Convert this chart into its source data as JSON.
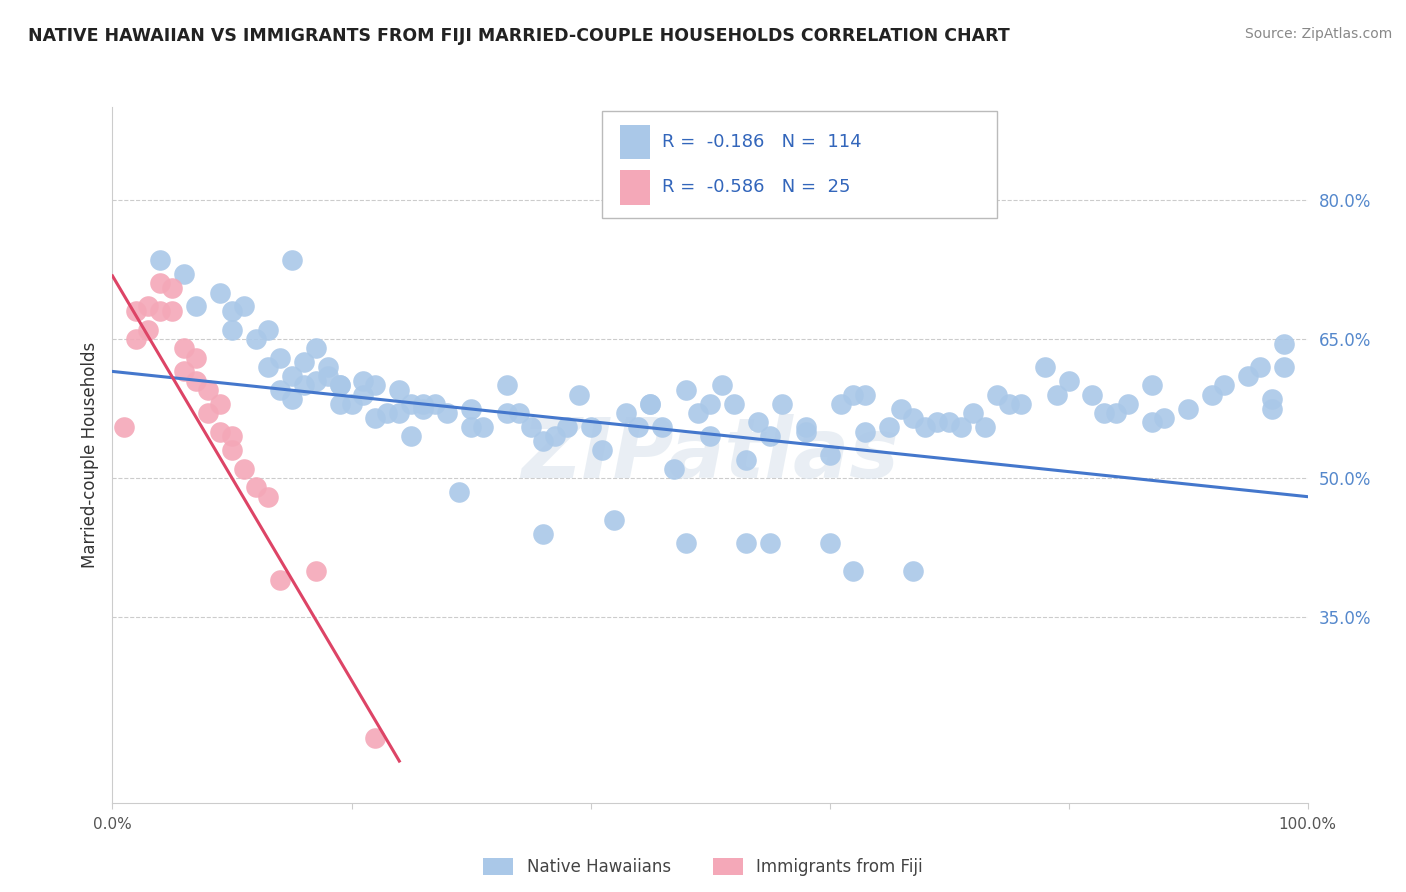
{
  "title": "NATIVE HAWAIIAN VS IMMIGRANTS FROM FIJI MARRIED-COUPLE HOUSEHOLDS CORRELATION CHART",
  "source": "Source: ZipAtlas.com",
  "ylabel_label": "Married-couple Households",
  "xlim": [
    0.0,
    1.0
  ],
  "ylim": [
    0.15,
    0.9
  ],
  "ytick_labels": [
    "35.0%",
    "50.0%",
    "65.0%",
    "80.0%"
  ],
  "ytick_positions": [
    0.35,
    0.5,
    0.65,
    0.8
  ],
  "grid_color": "#cccccc",
  "background_color": "#ffffff",
  "blue_color": "#aac8e8",
  "pink_color": "#f4a8b8",
  "blue_line_color": "#4477cc",
  "pink_line_color": "#dd4466",
  "legend_R1": "-0.186",
  "legend_N1": "114",
  "legend_R2": "-0.586",
  "legend_N2": "25",
  "legend_label1": "Native Hawaiians",
  "legend_label2": "Immigrants from Fiji",
  "watermark": "ZIPatlas",
  "blue_scatter_x": [
    0.04,
    0.06,
    0.07,
    0.09,
    0.1,
    0.1,
    0.11,
    0.12,
    0.13,
    0.13,
    0.14,
    0.14,
    0.15,
    0.15,
    0.16,
    0.16,
    0.17,
    0.17,
    0.18,
    0.18,
    0.19,
    0.19,
    0.2,
    0.21,
    0.21,
    0.22,
    0.23,
    0.24,
    0.24,
    0.25,
    0.25,
    0.26,
    0.27,
    0.28,
    0.29,
    0.3,
    0.3,
    0.31,
    0.33,
    0.34,
    0.35,
    0.36,
    0.37,
    0.38,
    0.4,
    0.41,
    0.43,
    0.44,
    0.45,
    0.46,
    0.47,
    0.48,
    0.49,
    0.5,
    0.5,
    0.51,
    0.53,
    0.54,
    0.55,
    0.56,
    0.58,
    0.6,
    0.61,
    0.62,
    0.63,
    0.65,
    0.66,
    0.67,
    0.68,
    0.7,
    0.72,
    0.73,
    0.75,
    0.76,
    0.78,
    0.8,
    0.82,
    0.84,
    0.85,
    0.87,
    0.88,
    0.9,
    0.92,
    0.93,
    0.95,
    0.96,
    0.97,
    0.97,
    0.98,
    0.98,
    0.15,
    0.19,
    0.22,
    0.26,
    0.33,
    0.39,
    0.45,
    0.52,
    0.58,
    0.63,
    0.69,
    0.74,
    0.79,
    0.83,
    0.87,
    0.62,
    0.67,
    0.71,
    0.55,
    0.48,
    0.36,
    0.42,
    0.53,
    0.6
  ],
  "blue_scatter_y": [
    0.735,
    0.72,
    0.685,
    0.7,
    0.68,
    0.66,
    0.685,
    0.65,
    0.66,
    0.62,
    0.63,
    0.595,
    0.61,
    0.585,
    0.625,
    0.6,
    0.605,
    0.64,
    0.62,
    0.61,
    0.6,
    0.58,
    0.58,
    0.59,
    0.605,
    0.565,
    0.57,
    0.595,
    0.57,
    0.58,
    0.545,
    0.575,
    0.58,
    0.57,
    0.485,
    0.575,
    0.555,
    0.555,
    0.57,
    0.57,
    0.555,
    0.54,
    0.545,
    0.555,
    0.555,
    0.53,
    0.57,
    0.555,
    0.58,
    0.555,
    0.51,
    0.595,
    0.57,
    0.545,
    0.58,
    0.6,
    0.52,
    0.56,
    0.545,
    0.58,
    0.555,
    0.525,
    0.58,
    0.59,
    0.55,
    0.555,
    0.575,
    0.565,
    0.555,
    0.56,
    0.57,
    0.555,
    0.58,
    0.58,
    0.62,
    0.605,
    0.59,
    0.57,
    0.58,
    0.6,
    0.565,
    0.575,
    0.59,
    0.6,
    0.61,
    0.62,
    0.585,
    0.575,
    0.645,
    0.62,
    0.735,
    0.6,
    0.6,
    0.58,
    0.6,
    0.59,
    0.58,
    0.58,
    0.55,
    0.59,
    0.56,
    0.59,
    0.59,
    0.57,
    0.56,
    0.4,
    0.4,
    0.555,
    0.43,
    0.43,
    0.44,
    0.455,
    0.43,
    0.43
  ],
  "pink_scatter_x": [
    0.01,
    0.02,
    0.02,
    0.03,
    0.03,
    0.04,
    0.04,
    0.05,
    0.05,
    0.06,
    0.06,
    0.07,
    0.07,
    0.08,
    0.08,
    0.09,
    0.09,
    0.1,
    0.1,
    0.11,
    0.12,
    0.13,
    0.14,
    0.17,
    0.22
  ],
  "pink_scatter_y": [
    0.555,
    0.68,
    0.65,
    0.685,
    0.66,
    0.71,
    0.68,
    0.705,
    0.68,
    0.64,
    0.615,
    0.63,
    0.605,
    0.595,
    0.57,
    0.58,
    0.55,
    0.545,
    0.53,
    0.51,
    0.49,
    0.48,
    0.39,
    0.4,
    0.22
  ],
  "blue_line_x": [
    0.0,
    1.0
  ],
  "blue_line_y": [
    0.615,
    0.48
  ],
  "pink_line_x": [
    0.0,
    0.24
  ],
  "pink_line_y": [
    0.718,
    0.195
  ]
}
